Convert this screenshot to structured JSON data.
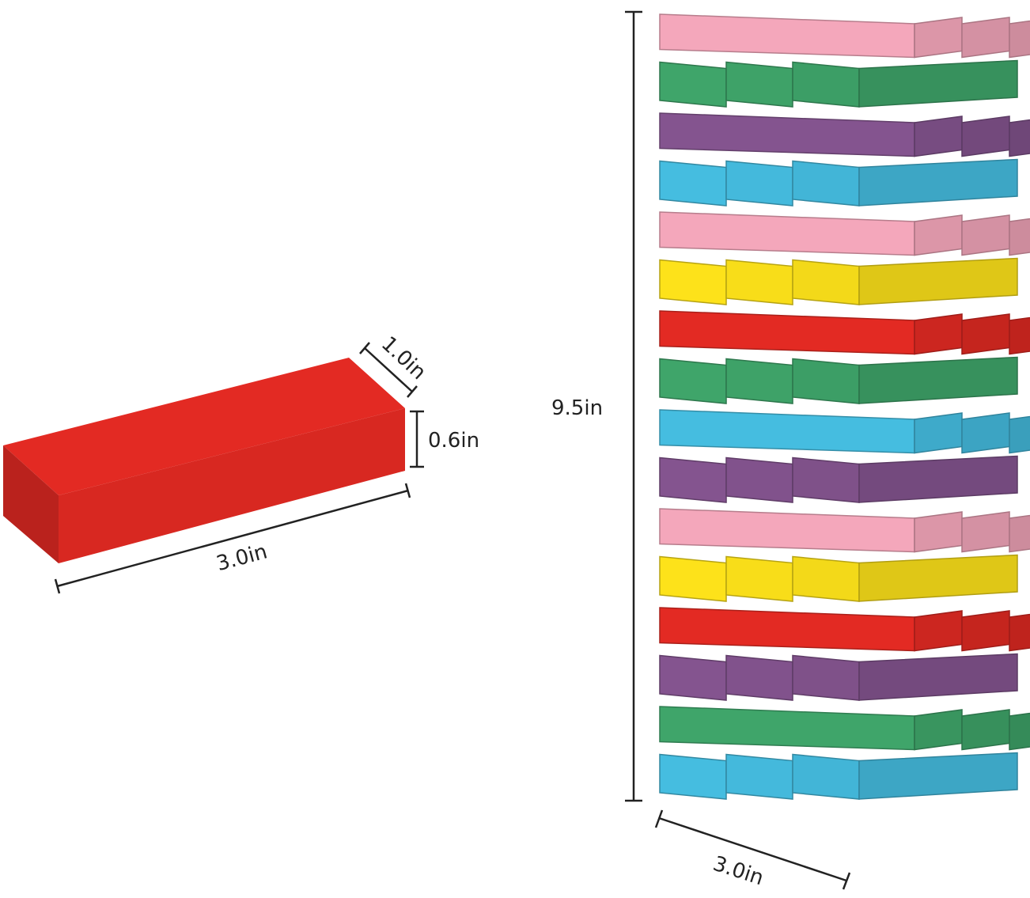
{
  "single_block": {
    "color": "#e32a23",
    "width_label": "1.0in",
    "height_label": "0.6in",
    "length_label": "3.0in"
  },
  "tower": {
    "height_label": "9.5in",
    "width_label": "3.0in",
    "layers_top_to_bottom": [
      "#f4a7bb",
      "#3fa56a",
      "#84548f",
      "#45bde0",
      "#f4a7bb",
      "#fde21a",
      "#e32a23",
      "#3fa56a",
      "#45bde0",
      "#84548f",
      "#f4a7bb",
      "#fde21a",
      "#e32a23",
      "#84548f",
      "#3fa56a",
      "#45bde0"
    ]
  }
}
